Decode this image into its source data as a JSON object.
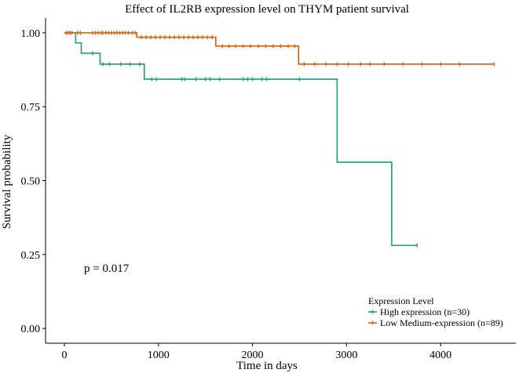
{
  "chart_data": {
    "type": "line",
    "title": "Effect of IL2RB expression level on THYM patient survival",
    "xlabel": "Time in days",
    "ylabel": "Survival probability",
    "xlim": [
      -200,
      4800
    ],
    "ylim": [
      -0.05,
      1.05
    ],
    "xticks": [
      0,
      1000,
      2000,
      3000,
      4000
    ],
    "xtick_labels": [
      "0",
      "1000",
      "2000",
      "3000",
      "4000"
    ],
    "yticks": [
      0,
      0.25,
      0.5,
      0.75,
      1.0
    ],
    "ytick_labels": [
      "0.00",
      "0.25",
      "0.50",
      "0.75",
      "1.00"
    ],
    "annotation": "p = 0.017",
    "legend": {
      "title": "Expression Level",
      "position": "bottom-right"
    },
    "series": [
      {
        "name": "High expression (n=30)",
        "color": "#1b9e77",
        "steps": [
          [
            0,
            1.0
          ],
          [
            120,
            0.966
          ],
          [
            180,
            0.931
          ],
          [
            380,
            0.894
          ],
          [
            850,
            0.843
          ],
          [
            2900,
            0.562
          ],
          [
            3480,
            0.281
          ],
          [
            3750,
            0.281
          ]
        ],
        "censors": [
          [
            60,
            1.0
          ],
          [
            300,
            0.931
          ],
          [
            410,
            0.894
          ],
          [
            480,
            0.894
          ],
          [
            600,
            0.894
          ],
          [
            700,
            0.894
          ],
          [
            800,
            0.894
          ],
          [
            930,
            0.843
          ],
          [
            980,
            0.843
          ],
          [
            1250,
            0.843
          ],
          [
            1280,
            0.843
          ],
          [
            1400,
            0.843
          ],
          [
            1500,
            0.843
          ],
          [
            1550,
            0.843
          ],
          [
            1650,
            0.843
          ],
          [
            1900,
            0.843
          ],
          [
            1950,
            0.843
          ],
          [
            2000,
            0.843
          ],
          [
            2100,
            0.843
          ],
          [
            2150,
            0.843
          ],
          [
            2500,
            0.843
          ],
          [
            3750,
            0.281
          ]
        ]
      },
      {
        "name": "Low Medium-expression (n=89)",
        "color": "#d95f02",
        "steps": [
          [
            0,
            1.0
          ],
          [
            770,
            0.985
          ],
          [
            1610,
            0.955
          ],
          [
            2490,
            0.894
          ],
          [
            4570,
            0.894
          ]
        ],
        "censors": [
          [
            20,
            1.0
          ],
          [
            40,
            1.0
          ],
          [
            60,
            1.0
          ],
          [
            80,
            1.0
          ],
          [
            140,
            1.0
          ],
          [
            170,
            1.0
          ],
          [
            300,
            1.0
          ],
          [
            330,
            1.0
          ],
          [
            360,
            1.0
          ],
          [
            390,
            1.0
          ],
          [
            410,
            1.0
          ],
          [
            440,
            1.0
          ],
          [
            470,
            1.0
          ],
          [
            500,
            1.0
          ],
          [
            530,
            1.0
          ],
          [
            560,
            1.0
          ],
          [
            590,
            1.0
          ],
          [
            620,
            1.0
          ],
          [
            650,
            1.0
          ],
          [
            680,
            1.0
          ],
          [
            720,
            1.0
          ],
          [
            750,
            1.0
          ],
          [
            820,
            0.985
          ],
          [
            870,
            0.985
          ],
          [
            920,
            0.985
          ],
          [
            970,
            0.985
          ],
          [
            1020,
            0.985
          ],
          [
            1070,
            0.985
          ],
          [
            1120,
            0.985
          ],
          [
            1170,
            0.985
          ],
          [
            1220,
            0.985
          ],
          [
            1270,
            0.985
          ],
          [
            1320,
            0.985
          ],
          [
            1370,
            0.985
          ],
          [
            1420,
            0.985
          ],
          [
            1470,
            0.985
          ],
          [
            1520,
            0.985
          ],
          [
            1570,
            0.985
          ],
          [
            1680,
            0.955
          ],
          [
            1750,
            0.955
          ],
          [
            1820,
            0.955
          ],
          [
            1900,
            0.955
          ],
          [
            1980,
            0.955
          ],
          [
            2060,
            0.955
          ],
          [
            2140,
            0.955
          ],
          [
            2220,
            0.955
          ],
          [
            2300,
            0.955
          ],
          [
            2380,
            0.955
          ],
          [
            2450,
            0.955
          ],
          [
            2550,
            0.894
          ],
          [
            2660,
            0.894
          ],
          [
            2780,
            0.894
          ],
          [
            2900,
            0.894
          ],
          [
            3020,
            0.894
          ],
          [
            3150,
            0.894
          ],
          [
            3250,
            0.894
          ],
          [
            3400,
            0.894
          ],
          [
            3600,
            0.894
          ],
          [
            3800,
            0.894
          ],
          [
            4000,
            0.894
          ],
          [
            4200,
            0.894
          ],
          [
            4570,
            0.894
          ]
        ]
      }
    ]
  }
}
